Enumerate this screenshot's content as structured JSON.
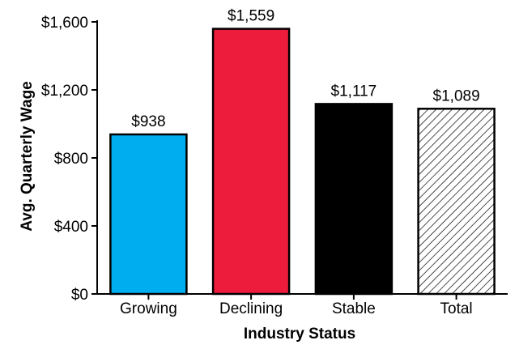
{
  "chart_data": {
    "type": "bar",
    "categories": [
      "Growing",
      "Declining",
      "Stable",
      "Total"
    ],
    "values": [
      938,
      1559,
      1117,
      1089
    ],
    "data_labels": [
      "$938",
      "$1,559",
      "$1,117",
      "$1,089"
    ],
    "bar_colors": [
      "#00aeef",
      "#ed1c3c",
      "#000000",
      "hatched"
    ],
    "title": "",
    "xlabel": "Industry Status",
    "ylabel": "Avg. Quarterly Wage",
    "ylim": [
      0,
      1600
    ],
    "yticks": [
      0,
      400,
      800,
      1200,
      1600
    ],
    "ytick_labels": [
      "$0",
      "$400",
      "$800",
      "$1,200",
      "$1,600"
    ],
    "grid": false,
    "legend": "none"
  }
}
